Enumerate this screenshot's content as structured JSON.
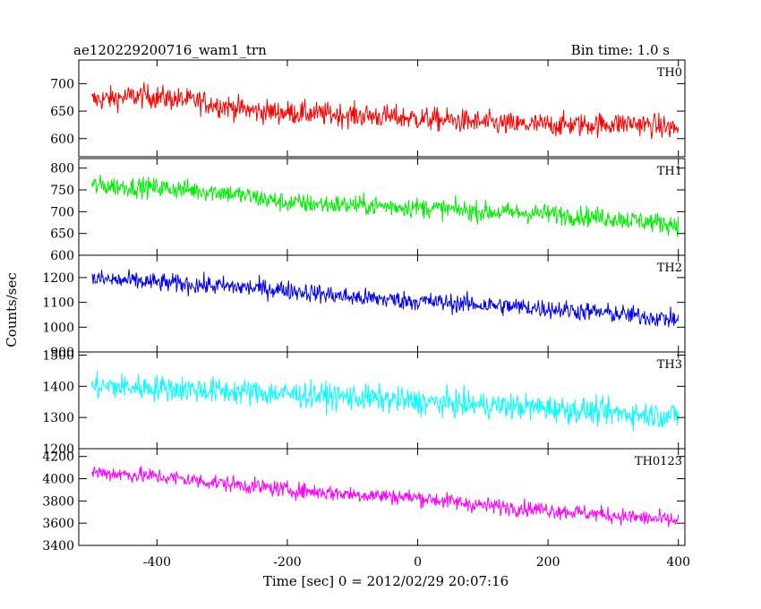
{
  "header": {
    "title": "ae120229200716_wam1_trn",
    "bin_time": "Bin time: 1.0 s"
  },
  "chart_data": {
    "type": "line",
    "xlabel": "Time [sec] 0 = 2012/02/29 20:07:16",
    "ylabel": "Counts/sec",
    "xlim": [
      -520,
      410
    ],
    "xticks": [
      -400,
      -200,
      0,
      200,
      400
    ],
    "x_range_data": [
      -500,
      400
    ],
    "grid": false,
    "panels": [
      {
        "name": "TH0",
        "color": "#ff0000",
        "ylim": [
          567,
          743
        ],
        "yticks": [
          600,
          650,
          700
        ],
        "trend_x": [
          -500,
          -420,
          -340,
          -250,
          -150,
          -50,
          50,
          150,
          250,
          330,
          400
        ],
        "trend_y": [
          670,
          678,
          668,
          650,
          645,
          640,
          633,
          625,
          625,
          628,
          618
        ],
        "noise_amplitude": 28
      },
      {
        "name": "TH1",
        "color": "#00ee00",
        "ylim": [
          600,
          822
        ],
        "yticks": [
          600,
          650,
          700,
          750,
          800
        ],
        "trend_x": [
          -500,
          -400,
          -300,
          -200,
          -100,
          0,
          100,
          200,
          300,
          400
        ],
        "trend_y": [
          760,
          755,
          745,
          720,
          715,
          710,
          700,
          695,
          685,
          670
        ],
        "noise_amplitude": 30
      },
      {
        "name": "TH2",
        "color": "#0000ee",
        "ylim": [
          900,
          1290
        ],
        "yticks": [
          900,
          1000,
          1100,
          1200
        ],
        "trend_x": [
          -500,
          -400,
          -300,
          -200,
          -100,
          0,
          100,
          200,
          300,
          400
        ],
        "trend_y": [
          1195,
          1180,
          1165,
          1150,
          1120,
          1105,
          1090,
          1075,
          1055,
          1030
        ],
        "noise_amplitude": 50
      },
      {
        "name": "TH3",
        "color": "#00ffff",
        "ylim": [
          1200,
          1510
        ],
        "yticks": [
          1200,
          1300,
          1400,
          1500
        ],
        "trend_x": [
          -500,
          -400,
          -300,
          -200,
          -100,
          0,
          100,
          200,
          300,
          400
        ],
        "trend_y": [
          1400,
          1395,
          1385,
          1375,
          1365,
          1350,
          1340,
          1330,
          1315,
          1305
        ],
        "noise_amplitude": 55
      },
      {
        "name": "TH0123",
        "color": "#ff00ff",
        "ylim": [
          3400,
          4270
        ],
        "yticks": [
          3400,
          3600,
          3800,
          4000,
          4200
        ],
        "trend_x": [
          -500,
          -400,
          -300,
          -200,
          -100,
          0,
          100,
          200,
          300,
          400
        ],
        "trend_y": [
          4060,
          4020,
          3960,
          3900,
          3860,
          3830,
          3760,
          3720,
          3670,
          3620
        ],
        "noise_amplitude": 95
      }
    ]
  }
}
